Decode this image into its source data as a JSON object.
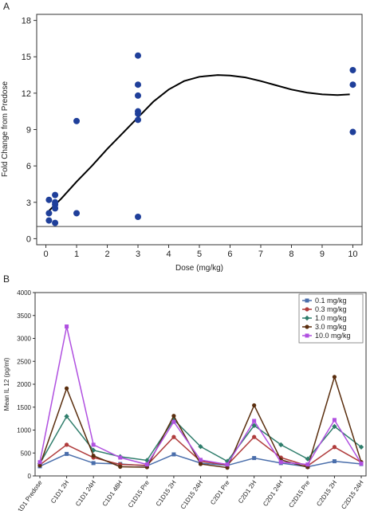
{
  "chart_data": [
    {
      "panel": "A",
      "type": "scatter",
      "xlabel": "Dose (mg/kg)",
      "ylabel": "Fold Change from Predose",
      "xlim": [
        -0.3,
        10.3
      ],
      "ylim": [
        -0.5,
        18.5
      ],
      "xticks": [
        0,
        1,
        2,
        3,
        4,
        5,
        6,
        7,
        8,
        9,
        10
      ],
      "yticks": [
        0,
        3,
        6,
        9,
        12,
        15,
        18
      ],
      "grid": false,
      "reference_line_y": 1,
      "point_color": "#1f3f9a",
      "points": [
        {
          "x": 0.1,
          "y": 3.2
        },
        {
          "x": 0.1,
          "y": 2.1
        },
        {
          "x": 0.1,
          "y": 1.5
        },
        {
          "x": 0.3,
          "y": 3.6
        },
        {
          "x": 0.3,
          "y": 3.0
        },
        {
          "x": 0.3,
          "y": 2.8
        },
        {
          "x": 0.3,
          "y": 2.5
        },
        {
          "x": 0.3,
          "y": 1.3
        },
        {
          "x": 1.0,
          "y": 9.7
        },
        {
          "x": 1.0,
          "y": 2.1
        },
        {
          "x": 3.0,
          "y": 15.1
        },
        {
          "x": 3.0,
          "y": 12.7
        },
        {
          "x": 3.0,
          "y": 11.8
        },
        {
          "x": 3.0,
          "y": 10.5
        },
        {
          "x": 3.0,
          "y": 10.3
        },
        {
          "x": 3.0,
          "y": 9.8
        },
        {
          "x": 3.0,
          "y": 1.8
        },
        {
          "x": 10.0,
          "y": 13.9
        },
        {
          "x": 10.0,
          "y": 12.7
        },
        {
          "x": 10.0,
          "y": 8.8
        }
      ],
      "fit_curve": [
        {
          "x": 0.1,
          "y": 2.3
        },
        {
          "x": 0.5,
          "y": 3.3
        },
        {
          "x": 1.0,
          "y": 4.7
        },
        {
          "x": 1.5,
          "y": 6.0
        },
        {
          "x": 2.0,
          "y": 7.4
        },
        {
          "x": 2.5,
          "y": 8.7
        },
        {
          "x": 3.0,
          "y": 10.0
        },
        {
          "x": 3.5,
          "y": 11.3
        },
        {
          "x": 4.0,
          "y": 12.3
        },
        {
          "x": 4.5,
          "y": 13.0
        },
        {
          "x": 5.0,
          "y": 13.35
        },
        {
          "x": 5.6,
          "y": 13.5
        },
        {
          "x": 6.0,
          "y": 13.45
        },
        {
          "x": 6.5,
          "y": 13.3
        },
        {
          "x": 7.0,
          "y": 13.0
        },
        {
          "x": 7.5,
          "y": 12.65
        },
        {
          "x": 8.0,
          "y": 12.3
        },
        {
          "x": 8.5,
          "y": 12.05
        },
        {
          "x": 9.0,
          "y": 11.9
        },
        {
          "x": 9.5,
          "y": 11.85
        },
        {
          "x": 9.9,
          "y": 11.9
        }
      ]
    },
    {
      "panel": "B",
      "type": "line",
      "ylabel": "Mean IL 12 (pg/ml)",
      "ylim": [
        0,
        4000
      ],
      "yticks": [
        0,
        500,
        1000,
        1500,
        2000,
        2500,
        3000,
        3500,
        4000
      ],
      "grid": false,
      "legend_position": "top-right",
      "categories": [
        "C1D1 Predose",
        "C1D1 2H",
        "C1D1 24H",
        "C1D1 48H",
        "C1D15 Pre",
        "C1D15 2H",
        "C1D15 24H",
        "C2D1 Pre",
        "C2D1 2H",
        "C2D1 24H",
        "C2D15 Pre",
        "C2D15 2H",
        "C2D15 24H"
      ],
      "series": [
        {
          "name": "0.1 mg/kg",
          "color": "#4a6eab",
          "marker": "square",
          "values": [
            210,
            480,
            280,
            260,
            220,
            470,
            280,
            230,
            390,
            280,
            200,
            320,
            260
          ]
        },
        {
          "name": "0.3 mg/kg",
          "color": "#b03c3c",
          "marker": "circle",
          "values": [
            240,
            680,
            400,
            250,
            230,
            850,
            320,
            240,
            850,
            400,
            220,
            630,
            300
          ]
        },
        {
          "name": "1.0 mg/kg",
          "color": "#2e7d6b",
          "marker": "diamond",
          "values": [
            270,
            1300,
            560,
            420,
            340,
            1230,
            640,
            320,
            1100,
            680,
            370,
            1080,
            630
          ]
        },
        {
          "name": "3.0 mg/kg",
          "color": "#5a2e0e",
          "marker": "circle",
          "values": [
            230,
            1910,
            440,
            200,
            190,
            1310,
            260,
            180,
            1540,
            350,
            190,
            2160,
            300
          ]
        },
        {
          "name": "10.0 mg/kg",
          "color": "#b050e0",
          "marker": "square",
          "values": [
            300,
            3260,
            680,
            400,
            250,
            1180,
            350,
            250,
            1200,
            300,
            250,
            1220,
            270
          ]
        }
      ]
    }
  ],
  "panel_labels": {
    "a": "A",
    "b": "B"
  }
}
